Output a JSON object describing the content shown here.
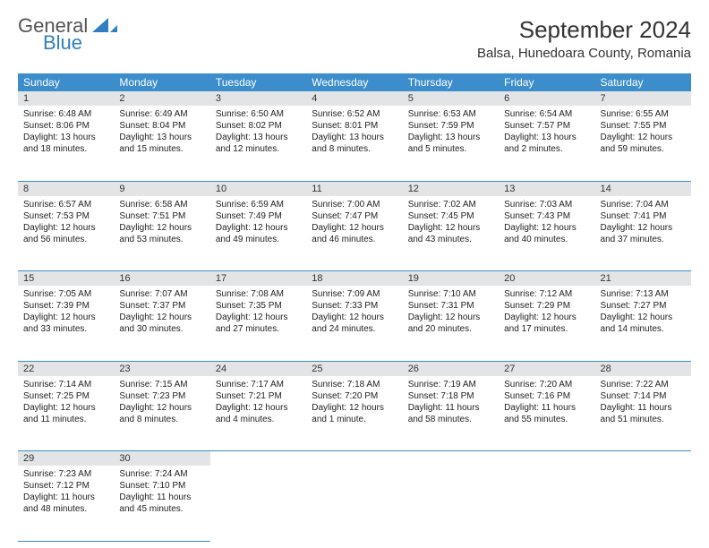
{
  "logo": {
    "general": "General",
    "blue": "Blue"
  },
  "title": "September 2024",
  "location": "Balsa, Hunedoara County, Romania",
  "colors": {
    "header_bg": "#3c8dcb",
    "daynum_bg": "#e3e4e5",
    "border": "#3c8dcb"
  },
  "weekdays": [
    "Sunday",
    "Monday",
    "Tuesday",
    "Wednesday",
    "Thursday",
    "Friday",
    "Saturday"
  ],
  "weeks": [
    [
      {
        "n": "1",
        "sr": "6:48 AM",
        "ss": "8:06 PM",
        "dl": "13 hours and 18 minutes."
      },
      {
        "n": "2",
        "sr": "6:49 AM",
        "ss": "8:04 PM",
        "dl": "13 hours and 15 minutes."
      },
      {
        "n": "3",
        "sr": "6:50 AM",
        "ss": "8:02 PM",
        "dl": "13 hours and 12 minutes."
      },
      {
        "n": "4",
        "sr": "6:52 AM",
        "ss": "8:01 PM",
        "dl": "13 hours and 8 minutes."
      },
      {
        "n": "5",
        "sr": "6:53 AM",
        "ss": "7:59 PM",
        "dl": "13 hours and 5 minutes."
      },
      {
        "n": "6",
        "sr": "6:54 AM",
        "ss": "7:57 PM",
        "dl": "13 hours and 2 minutes."
      },
      {
        "n": "7",
        "sr": "6:55 AM",
        "ss": "7:55 PM",
        "dl": "12 hours and 59 minutes."
      }
    ],
    [
      {
        "n": "8",
        "sr": "6:57 AM",
        "ss": "7:53 PM",
        "dl": "12 hours and 56 minutes."
      },
      {
        "n": "9",
        "sr": "6:58 AM",
        "ss": "7:51 PM",
        "dl": "12 hours and 53 minutes."
      },
      {
        "n": "10",
        "sr": "6:59 AM",
        "ss": "7:49 PM",
        "dl": "12 hours and 49 minutes."
      },
      {
        "n": "11",
        "sr": "7:00 AM",
        "ss": "7:47 PM",
        "dl": "12 hours and 46 minutes."
      },
      {
        "n": "12",
        "sr": "7:02 AM",
        "ss": "7:45 PM",
        "dl": "12 hours and 43 minutes."
      },
      {
        "n": "13",
        "sr": "7:03 AM",
        "ss": "7:43 PM",
        "dl": "12 hours and 40 minutes."
      },
      {
        "n": "14",
        "sr": "7:04 AM",
        "ss": "7:41 PM",
        "dl": "12 hours and 37 minutes."
      }
    ],
    [
      {
        "n": "15",
        "sr": "7:05 AM",
        "ss": "7:39 PM",
        "dl": "12 hours and 33 minutes."
      },
      {
        "n": "16",
        "sr": "7:07 AM",
        "ss": "7:37 PM",
        "dl": "12 hours and 30 minutes."
      },
      {
        "n": "17",
        "sr": "7:08 AM",
        "ss": "7:35 PM",
        "dl": "12 hours and 27 minutes."
      },
      {
        "n": "18",
        "sr": "7:09 AM",
        "ss": "7:33 PM",
        "dl": "12 hours and 24 minutes."
      },
      {
        "n": "19",
        "sr": "7:10 AM",
        "ss": "7:31 PM",
        "dl": "12 hours and 20 minutes."
      },
      {
        "n": "20",
        "sr": "7:12 AM",
        "ss": "7:29 PM",
        "dl": "12 hours and 17 minutes."
      },
      {
        "n": "21",
        "sr": "7:13 AM",
        "ss": "7:27 PM",
        "dl": "12 hours and 14 minutes."
      }
    ],
    [
      {
        "n": "22",
        "sr": "7:14 AM",
        "ss": "7:25 PM",
        "dl": "12 hours and 11 minutes."
      },
      {
        "n": "23",
        "sr": "7:15 AM",
        "ss": "7:23 PM",
        "dl": "12 hours and 8 minutes."
      },
      {
        "n": "24",
        "sr": "7:17 AM",
        "ss": "7:21 PM",
        "dl": "12 hours and 4 minutes."
      },
      {
        "n": "25",
        "sr": "7:18 AM",
        "ss": "7:20 PM",
        "dl": "12 hours and 1 minute."
      },
      {
        "n": "26",
        "sr": "7:19 AM",
        "ss": "7:18 PM",
        "dl": "11 hours and 58 minutes."
      },
      {
        "n": "27",
        "sr": "7:20 AM",
        "ss": "7:16 PM",
        "dl": "11 hours and 55 minutes."
      },
      {
        "n": "28",
        "sr": "7:22 AM",
        "ss": "7:14 PM",
        "dl": "11 hours and 51 minutes."
      }
    ],
    [
      {
        "n": "29",
        "sr": "7:23 AM",
        "ss": "7:12 PM",
        "dl": "11 hours and 48 minutes."
      },
      {
        "n": "30",
        "sr": "7:24 AM",
        "ss": "7:10 PM",
        "dl": "11 hours and 45 minutes."
      },
      null,
      null,
      null,
      null,
      null
    ]
  ],
  "labels": {
    "sunrise": "Sunrise:",
    "sunset": "Sunset:",
    "daylight": "Daylight:"
  }
}
